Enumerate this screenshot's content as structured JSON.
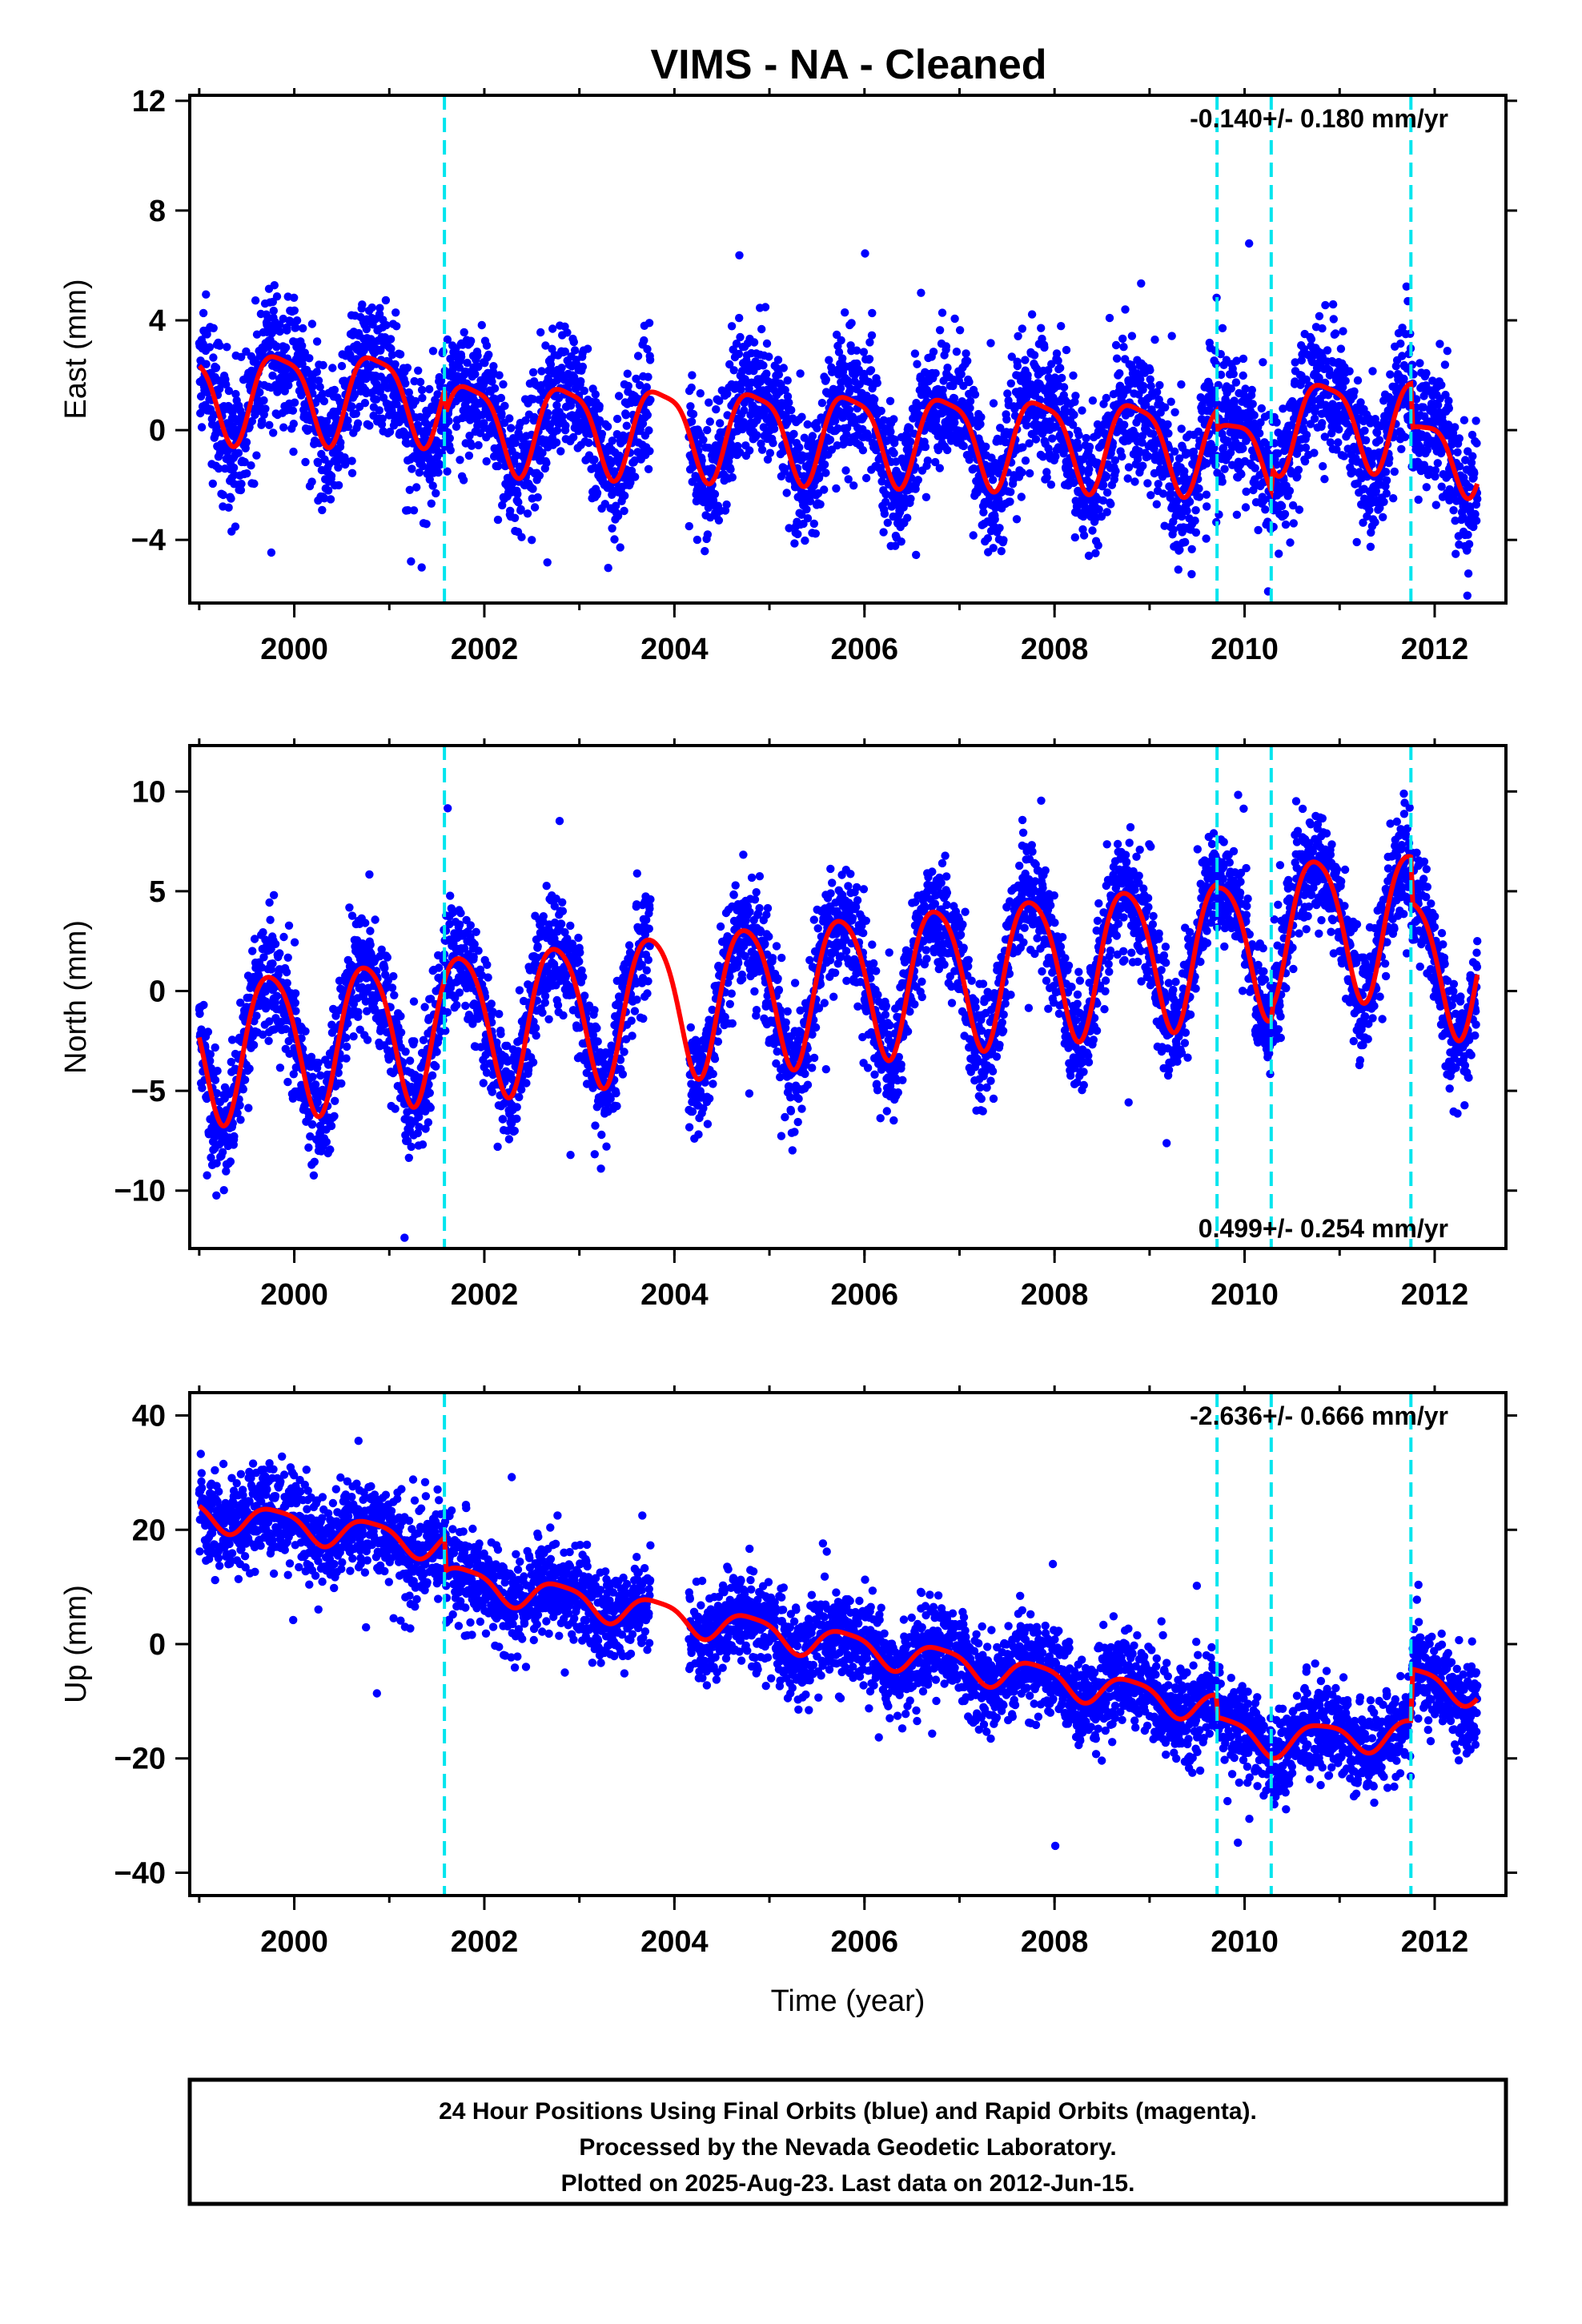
{
  "figure": {
    "title": "VIMS  - NA - Cleaned",
    "footer": [
      "24 Hour Positions Using Final Orbits (blue) and Rapid Orbits (magenta).",
      "Processed by the Nevada Geodetic Laboratory.",
      "Plotted on 2025-Aug-23. Last data on 2012-Jun-15."
    ],
    "colors": {
      "points": "#0000ff",
      "fit": "#ff0000",
      "steps": "#00e5ee"
    }
  },
  "chart_data": [
    {
      "type": "scatter",
      "panel": "east",
      "ylabel": "East (mm)",
      "xlabel": "",
      "xlim": [
        1998.9,
        2012.75
      ],
      "ylim": [
        -6.3,
        12.2
      ],
      "xticks": [
        2000,
        2002,
        2004,
        2006,
        2008,
        2010,
        2012
      ],
      "yticks": [
        -4,
        0,
        4,
        8,
        12
      ],
      "tick_labels": [
        "−4",
        "0",
        "4",
        "8",
        "12"
      ],
      "rate_label": "-0.140+/- 0.180 mm/yr",
      "rate_position": "top-right",
      "step_epochs": [
        2001.58,
        2009.71,
        2010.28,
        2011.75
      ],
      "data_range": [
        1999.0,
        2012.45
      ],
      "gaps": [
        [
          2003.75,
          2004.15
        ]
      ],
      "model": {
        "base_points": [
          [
            1999.0,
            1.4
          ],
          [
            2001.58,
            1.3
          ],
          [
            2001.6,
            0.3
          ],
          [
            2009.7,
            -0.5
          ],
          [
            2009.72,
            -1.2
          ],
          [
            2010.28,
            -0.6
          ],
          [
            2010.3,
            0.3
          ],
          [
            2011.75,
            0.4
          ],
          [
            2011.77,
            -1.2
          ],
          [
            2012.45,
            -0.4
          ]
        ],
        "annual_amplitude": 1.6,
        "annual_phase": 0.6,
        "semiannual_amplitude": 0.4,
        "scatter_sd": 1.2
      }
    },
    {
      "type": "scatter",
      "panel": "north",
      "ylabel": "North (mm)",
      "xlabel": "",
      "xlim": [
        1998.9,
        2012.75
      ],
      "ylim": [
        -12.9,
        12.3
      ],
      "xticks": [
        2000,
        2002,
        2004,
        2006,
        2008,
        2010,
        2012
      ],
      "yticks": [
        -10,
        -5,
        0,
        5,
        10
      ],
      "tick_labels": [
        "−10",
        "−5",
        "0",
        "5",
        "10"
      ],
      "rate_label": "0.499+/- 0.254 mm/yr",
      "rate_position": "bottom-right",
      "step_epochs": [
        2001.58,
        2009.71,
        2010.28,
        2011.75
      ],
      "data_range": [
        1999.0,
        2012.45
      ],
      "gaps": [
        [
          2003.75,
          2004.15
        ]
      ],
      "model": {
        "base_points": [
          [
            1999.0,
            -2.8
          ],
          [
            2009.7,
            2.2
          ],
          [
            2009.72,
            2.0
          ],
          [
            2010.28,
            2.6
          ],
          [
            2010.3,
            3.2
          ],
          [
            2011.75,
            3.6
          ],
          [
            2011.77,
            1.3
          ],
          [
            2012.45,
            1.7
          ]
        ],
        "annual_amplitude": 3.6,
        "annual_phase": 0.5,
        "semiannual_amplitude": 0.5,
        "scatter_sd": 1.4
      }
    },
    {
      "type": "scatter",
      "panel": "up",
      "ylabel": "Up (mm)",
      "xlabel": "Time (year)",
      "xlim": [
        1998.9,
        2012.75
      ],
      "ylim": [
        -44,
        44
      ],
      "xticks": [
        2000,
        2002,
        2004,
        2006,
        2008,
        2010,
        2012
      ],
      "yticks": [
        -40,
        -20,
        0,
        20,
        40
      ],
      "tick_labels": [
        "−40",
        "−20",
        "0",
        "20",
        "40"
      ],
      "rate_label": "-2.636+/- 0.666 mm/yr",
      "rate_position": "top-right",
      "step_epochs": [
        2001.58,
        2009.71,
        2010.28,
        2011.75
      ],
      "data_range": [
        1999.0,
        2012.45
      ],
      "gaps": [
        [
          2003.75,
          2004.15
        ]
      ],
      "model": {
        "base_points": [
          [
            1999.0,
            23.0
          ],
          [
            2001.58,
            17.5
          ],
          [
            2001.6,
            11.5
          ],
          [
            2009.7,
            -11.0
          ],
          [
            2009.72,
            -15.0
          ],
          [
            2010.28,
            -16.8
          ],
          [
            2010.3,
            -16.8
          ],
          [
            2011.75,
            -15.5
          ],
          [
            2011.77,
            -6.5
          ],
          [
            2012.45,
            -8.0
          ]
        ],
        "annual_amplitude": 2.6,
        "annual_phase": 0.55,
        "semiannual_amplitude": 0.6,
        "scatter_sd": 4.0
      }
    }
  ]
}
